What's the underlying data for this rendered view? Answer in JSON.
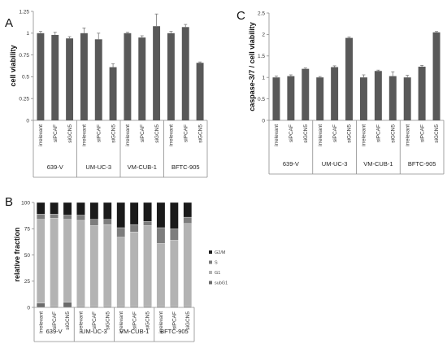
{
  "panels": {
    "A": "A",
    "B": "B",
    "C": "C"
  },
  "chart_data": [
    {
      "id": "A",
      "type": "bar",
      "ylabel": "cell viability",
      "ylim": [
        0,
        1.25
      ],
      "yticks": [
        0,
        0.25,
        0.5,
        0.75,
        1,
        1.25
      ],
      "ytick_labels": [
        "0",
        "0.25",
        "0.5",
        "0.75",
        "1",
        "1.25"
      ],
      "bar_color": "#595959",
      "groups": [
        "639-V",
        "UM-UC-3",
        "VM-CUB-1",
        "BFTC-905"
      ],
      "categories": [
        "irrelevant",
        "siPCAF",
        "siGCN5"
      ],
      "values": [
        [
          1.0,
          0.98,
          0.94
        ],
        [
          1.0,
          0.93,
          0.61
        ],
        [
          1.0,
          0.95,
          1.08
        ],
        [
          1.0,
          1.07,
          0.66
        ]
      ],
      "errors": [
        [
          0.02,
          0.03,
          0.02
        ],
        [
          0.06,
          0.07,
          0.04
        ],
        [
          0.01,
          0.02,
          0.14
        ],
        [
          0.02,
          0.03,
          0.01
        ]
      ]
    },
    {
      "id": "C",
      "type": "bar",
      "ylabel": "caspase-3/7 / cell viability",
      "ylim": [
        0,
        2.5
      ],
      "yticks": [
        0,
        0.5,
        1,
        1.5,
        2,
        2.5
      ],
      "ytick_labels": [
        "0",
        "0.5",
        "1",
        "1.5",
        "2",
        "2.5"
      ],
      "bar_color": "#595959",
      "groups": [
        "639-V",
        "UM-UC-3",
        "VM-CUB-1",
        "BFTC-905"
      ],
      "categories": [
        "irrelevant",
        "siPCAF",
        "siGCN5"
      ],
      "values": [
        [
          1.0,
          1.03,
          1.2
        ],
        [
          1.0,
          1.24,
          1.92
        ],
        [
          1.0,
          1.15,
          1.03
        ],
        [
          1.0,
          1.25,
          2.05
        ]
      ],
      "errors": [
        [
          0.03,
          0.03,
          0.02
        ],
        [
          0.02,
          0.03,
          0.02
        ],
        [
          0.06,
          0.02,
          0.1
        ],
        [
          0.05,
          0.03,
          0.02
        ]
      ]
    },
    {
      "id": "B",
      "type": "bar",
      "stacked": true,
      "ylabel": "relative fraction",
      "ylim": [
        0,
        100
      ],
      "yticks": [
        0,
        25,
        50,
        75,
        100
      ],
      "ytick_labels": [
        "0",
        "25",
        "50",
        "75",
        "100"
      ],
      "groups": [
        "639-V",
        "UM-UC-3",
        "VM-CUB-1",
        "BFTC-905"
      ],
      "categories": [
        "irrelevant",
        "siPCAF",
        "siGCN5"
      ],
      "series": [
        {
          "name": "subG1",
          "color": "#6b6b6b",
          "values": [
            [
              4,
              1,
              5
            ],
            [
              1,
              1,
              1
            ],
            [
              1,
              1,
              1
            ],
            [
              1,
              1,
              1
            ]
          ]
        },
        {
          "name": "G1",
          "color": "#b3b3b3",
          "values": [
            [
              80,
              84,
              79
            ],
            [
              82,
              77,
              78
            ],
            [
              66,
              71,
              77
            ],
            [
              60,
              63,
              79
            ]
          ]
        },
        {
          "name": "S",
          "color": "#7d7d7d",
          "values": [
            [
              5,
              4,
              4
            ],
            [
              5,
              6,
              5
            ],
            [
              9,
              7,
              4
            ],
            [
              15,
              11,
              6
            ]
          ]
        },
        {
          "name": "G2/M",
          "color": "#1a1a1a",
          "values": [
            [
              11,
              11,
              12
            ],
            [
              12,
              16,
              16
            ],
            [
              24,
              21,
              18
            ],
            [
              24,
              25,
              14
            ]
          ]
        }
      ],
      "legend_order": [
        "G2/M",
        "S",
        "G1",
        "subG1"
      ],
      "legend_position": "right"
    }
  ]
}
